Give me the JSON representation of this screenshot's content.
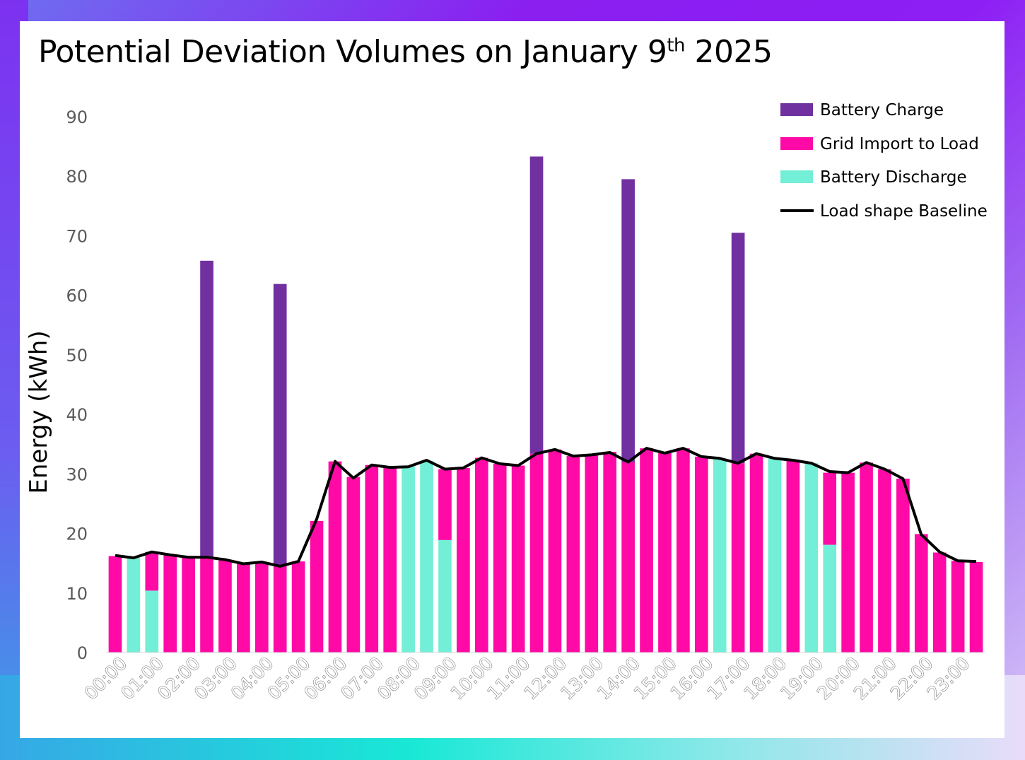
{
  "title": {
    "main": "Potential Deviation Volumes on January 9",
    "sup": "th",
    "year": " 2025"
  },
  "chart_data": {
    "type": "bar",
    "title": "Potential Deviation Volumes on January 9th 2025",
    "ylabel": "Energy (kWh)",
    "ylim": [
      0,
      90
    ],
    "yticks": [
      0,
      10,
      20,
      30,
      40,
      50,
      60,
      70,
      80,
      90
    ],
    "x_tick_labels": [
      "00:00",
      "01:00",
      "02:00",
      "03:00",
      "04:00",
      "05:00",
      "06:00",
      "07:00",
      "08:00",
      "09:00",
      "10:00",
      "11:00",
      "12:00",
      "13:00",
      "14:00",
      "15:00",
      "16:00",
      "17:00",
      "18:00",
      "19:00",
      "20:00",
      "21:00",
      "22:00",
      "23:00"
    ],
    "intervals": [
      "00:00",
      "00:30",
      "01:00",
      "01:30",
      "02:00",
      "02:30",
      "03:00",
      "03:30",
      "04:00",
      "04:30",
      "05:00",
      "05:30",
      "06:00",
      "06:30",
      "07:00",
      "07:30",
      "08:00",
      "08:30",
      "09:00",
      "09:30",
      "10:00",
      "10:30",
      "11:00",
      "11:30",
      "12:00",
      "12:30",
      "13:00",
      "13:30",
      "14:00",
      "14:30",
      "15:00",
      "15:30",
      "16:00",
      "16:30",
      "17:00",
      "17:30",
      "18:00",
      "18:30",
      "19:00",
      "19:30",
      "20:00",
      "20:30",
      "21:00",
      "21:30",
      "22:00",
      "22:30",
      "23:00",
      "23:30"
    ],
    "legend_position": "top-right",
    "series": [
      {
        "name": "Battery Charge",
        "type": "bar",
        "color": "#7030a0",
        "values": [
          0,
          0,
          0,
          0,
          0,
          65.8,
          0,
          0,
          0,
          61.9,
          0,
          0,
          0,
          0,
          0,
          0,
          0,
          0,
          0,
          0,
          0,
          0,
          0,
          83.3,
          0,
          0,
          0,
          0,
          79.5,
          0,
          0,
          0,
          0,
          0,
          70.5,
          0,
          0,
          0,
          0,
          0,
          0,
          0,
          0,
          0,
          0,
          0,
          0,
          0
        ]
      },
      {
        "name": "Grid Import to Load",
        "type": "bar",
        "color": "#ff0aa6",
        "values": [
          16.2,
          0,
          16.9,
          16.4,
          16.1,
          16.1,
          15.6,
          15.0,
          15.2,
          14.6,
          15.3,
          22.1,
          32.1,
          29.5,
          31.5,
          31.1,
          0,
          0,
          30.8,
          31.0,
          32.7,
          31.7,
          31.4,
          33.4,
          34.1,
          33.0,
          33.2,
          33.7,
          32.0,
          34.3,
          33.5,
          34.3,
          32.9,
          0,
          31.8,
          33.4,
          0,
          32.3,
          0,
          30.2,
          30.2,
          31.9,
          30.8,
          29.2,
          19.9,
          16.8,
          15.4,
          15.2
        ]
      },
      {
        "name": "Battery Discharge",
        "type": "bar",
        "color": "#72efd6",
        "values": [
          0,
          15.9,
          10.4,
          0,
          0,
          0,
          0,
          0,
          0,
          0,
          0,
          0,
          0,
          0,
          0,
          0,
          31.2,
          32.2,
          18.9,
          0,
          0,
          0,
          0,
          0,
          0,
          0,
          0,
          0,
          0,
          0,
          0,
          0,
          0,
          32.5,
          0,
          0,
          32.6,
          0,
          31.8,
          18.1,
          0,
          0,
          0,
          0,
          0,
          0,
          0,
          0
        ]
      },
      {
        "name": "Load shape Baseline",
        "type": "line",
        "color": "#000000",
        "values": [
          16.3,
          15.9,
          16.9,
          16.4,
          16.0,
          16.0,
          15.6,
          14.9,
          15.2,
          14.5,
          15.3,
          22.4,
          32.1,
          29.3,
          31.5,
          31.1,
          31.2,
          32.3,
          30.8,
          31.0,
          32.7,
          31.7,
          31.4,
          33.4,
          34.1,
          33.0,
          33.2,
          33.6,
          32.0,
          34.3,
          33.5,
          34.3,
          32.9,
          32.6,
          31.8,
          33.4,
          32.6,
          32.3,
          31.8,
          30.4,
          30.2,
          31.9,
          30.8,
          29.2,
          19.8,
          16.9,
          15.4,
          15.3
        ]
      }
    ]
  }
}
